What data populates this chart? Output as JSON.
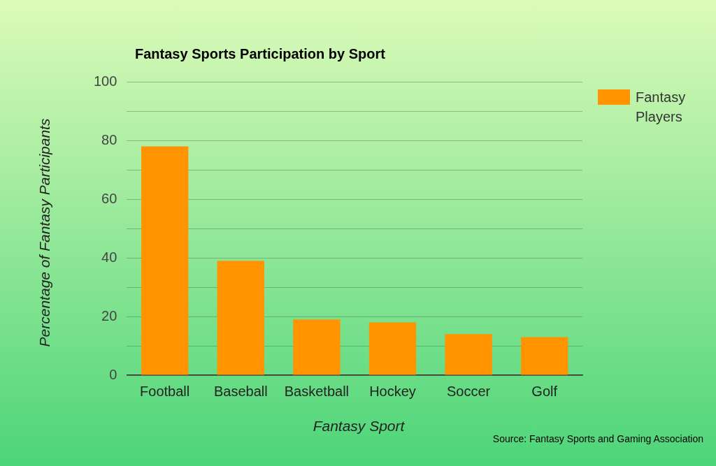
{
  "chart_data": {
    "type": "bar",
    "title": "Fantasy Sports Participation by Sport",
    "xlabel": "Fantasy Sport",
    "ylabel": "Percentage of Fantasy Participants",
    "categories": [
      "Football",
      "Baseball",
      "Basketball",
      "Hockey",
      "Soccer",
      "Golf"
    ],
    "series": [
      {
        "name": "Fantasy Players",
        "color": "#ff9300",
        "values": [
          78,
          39,
          19,
          18,
          14,
          13
        ]
      }
    ],
    "ylim": [
      0,
      100
    ],
    "yticks": [
      0,
      {
        "value": 10,
        "label": null
      },
      20,
      {
        "value": 30,
        "label": null
      },
      40,
      {
        "value": 50,
        "label": null
      },
      60,
      {
        "value": 70,
        "label": null
      },
      80,
      {
        "value": 90,
        "label": null
      },
      100
    ],
    "grid": "y",
    "legend": "right",
    "annotations": [
      "Source: Fantasy Sports and Gaming Association"
    ]
  }
}
